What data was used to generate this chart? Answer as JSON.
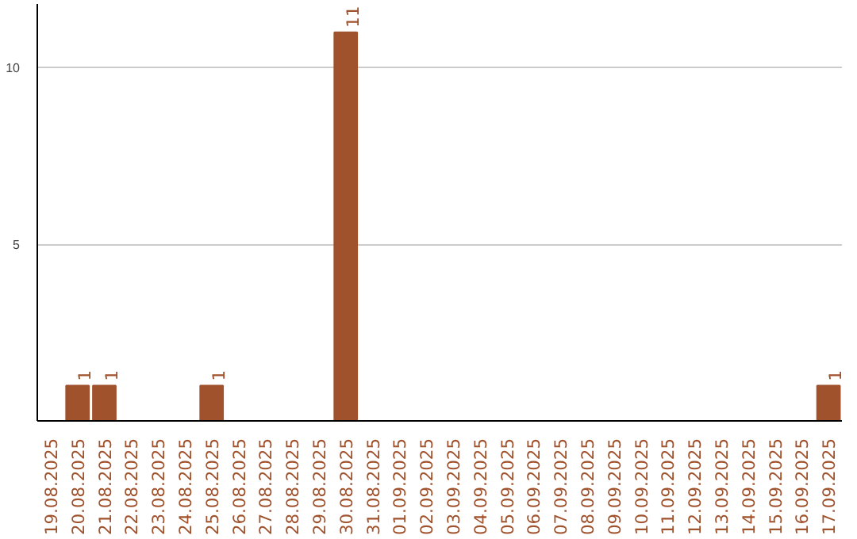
{
  "chart_data": {
    "type": "bar",
    "categories": [
      "19.08.2025",
      "20.08.2025",
      "21.08.2025",
      "22.08.2025",
      "23.08.2025",
      "24.08.2025",
      "25.08.2025",
      "26.08.2025",
      "27.08.2025",
      "28.08.2025",
      "29.08.2025",
      "30.08.2025",
      "31.08.2025",
      "01.09.2025",
      "02.09.2025",
      "03.09.2025",
      "04.09.2025",
      "05.09.2025",
      "06.09.2025",
      "07.09.2025",
      "08.09.2025",
      "09.09.2025",
      "10.09.2025",
      "11.09.2025",
      "12.09.2025",
      "13.09.2025",
      "14.09.2025",
      "15.09.2025",
      "16.09.2025",
      "17.09.2025"
    ],
    "values": [
      0,
      1,
      1,
      0,
      0,
      0,
      1,
      0,
      0,
      0,
      0,
      11,
      0,
      0,
      0,
      0,
      0,
      0,
      0,
      0,
      0,
      0,
      0,
      0,
      0,
      0,
      0,
      0,
      0,
      1
    ],
    "value_labels": [
      null,
      "1",
      "1",
      null,
      null,
      null,
      "1",
      null,
      null,
      null,
      null,
      "11",
      null,
      null,
      null,
      null,
      null,
      null,
      null,
      null,
      null,
      null,
      null,
      null,
      null,
      null,
      null,
      null,
      null,
      "1"
    ],
    "color": "#a0522d",
    "ylim": [
      0,
      11.8
    ],
    "yticks": [
      5,
      10
    ],
    "grid": "y"
  }
}
